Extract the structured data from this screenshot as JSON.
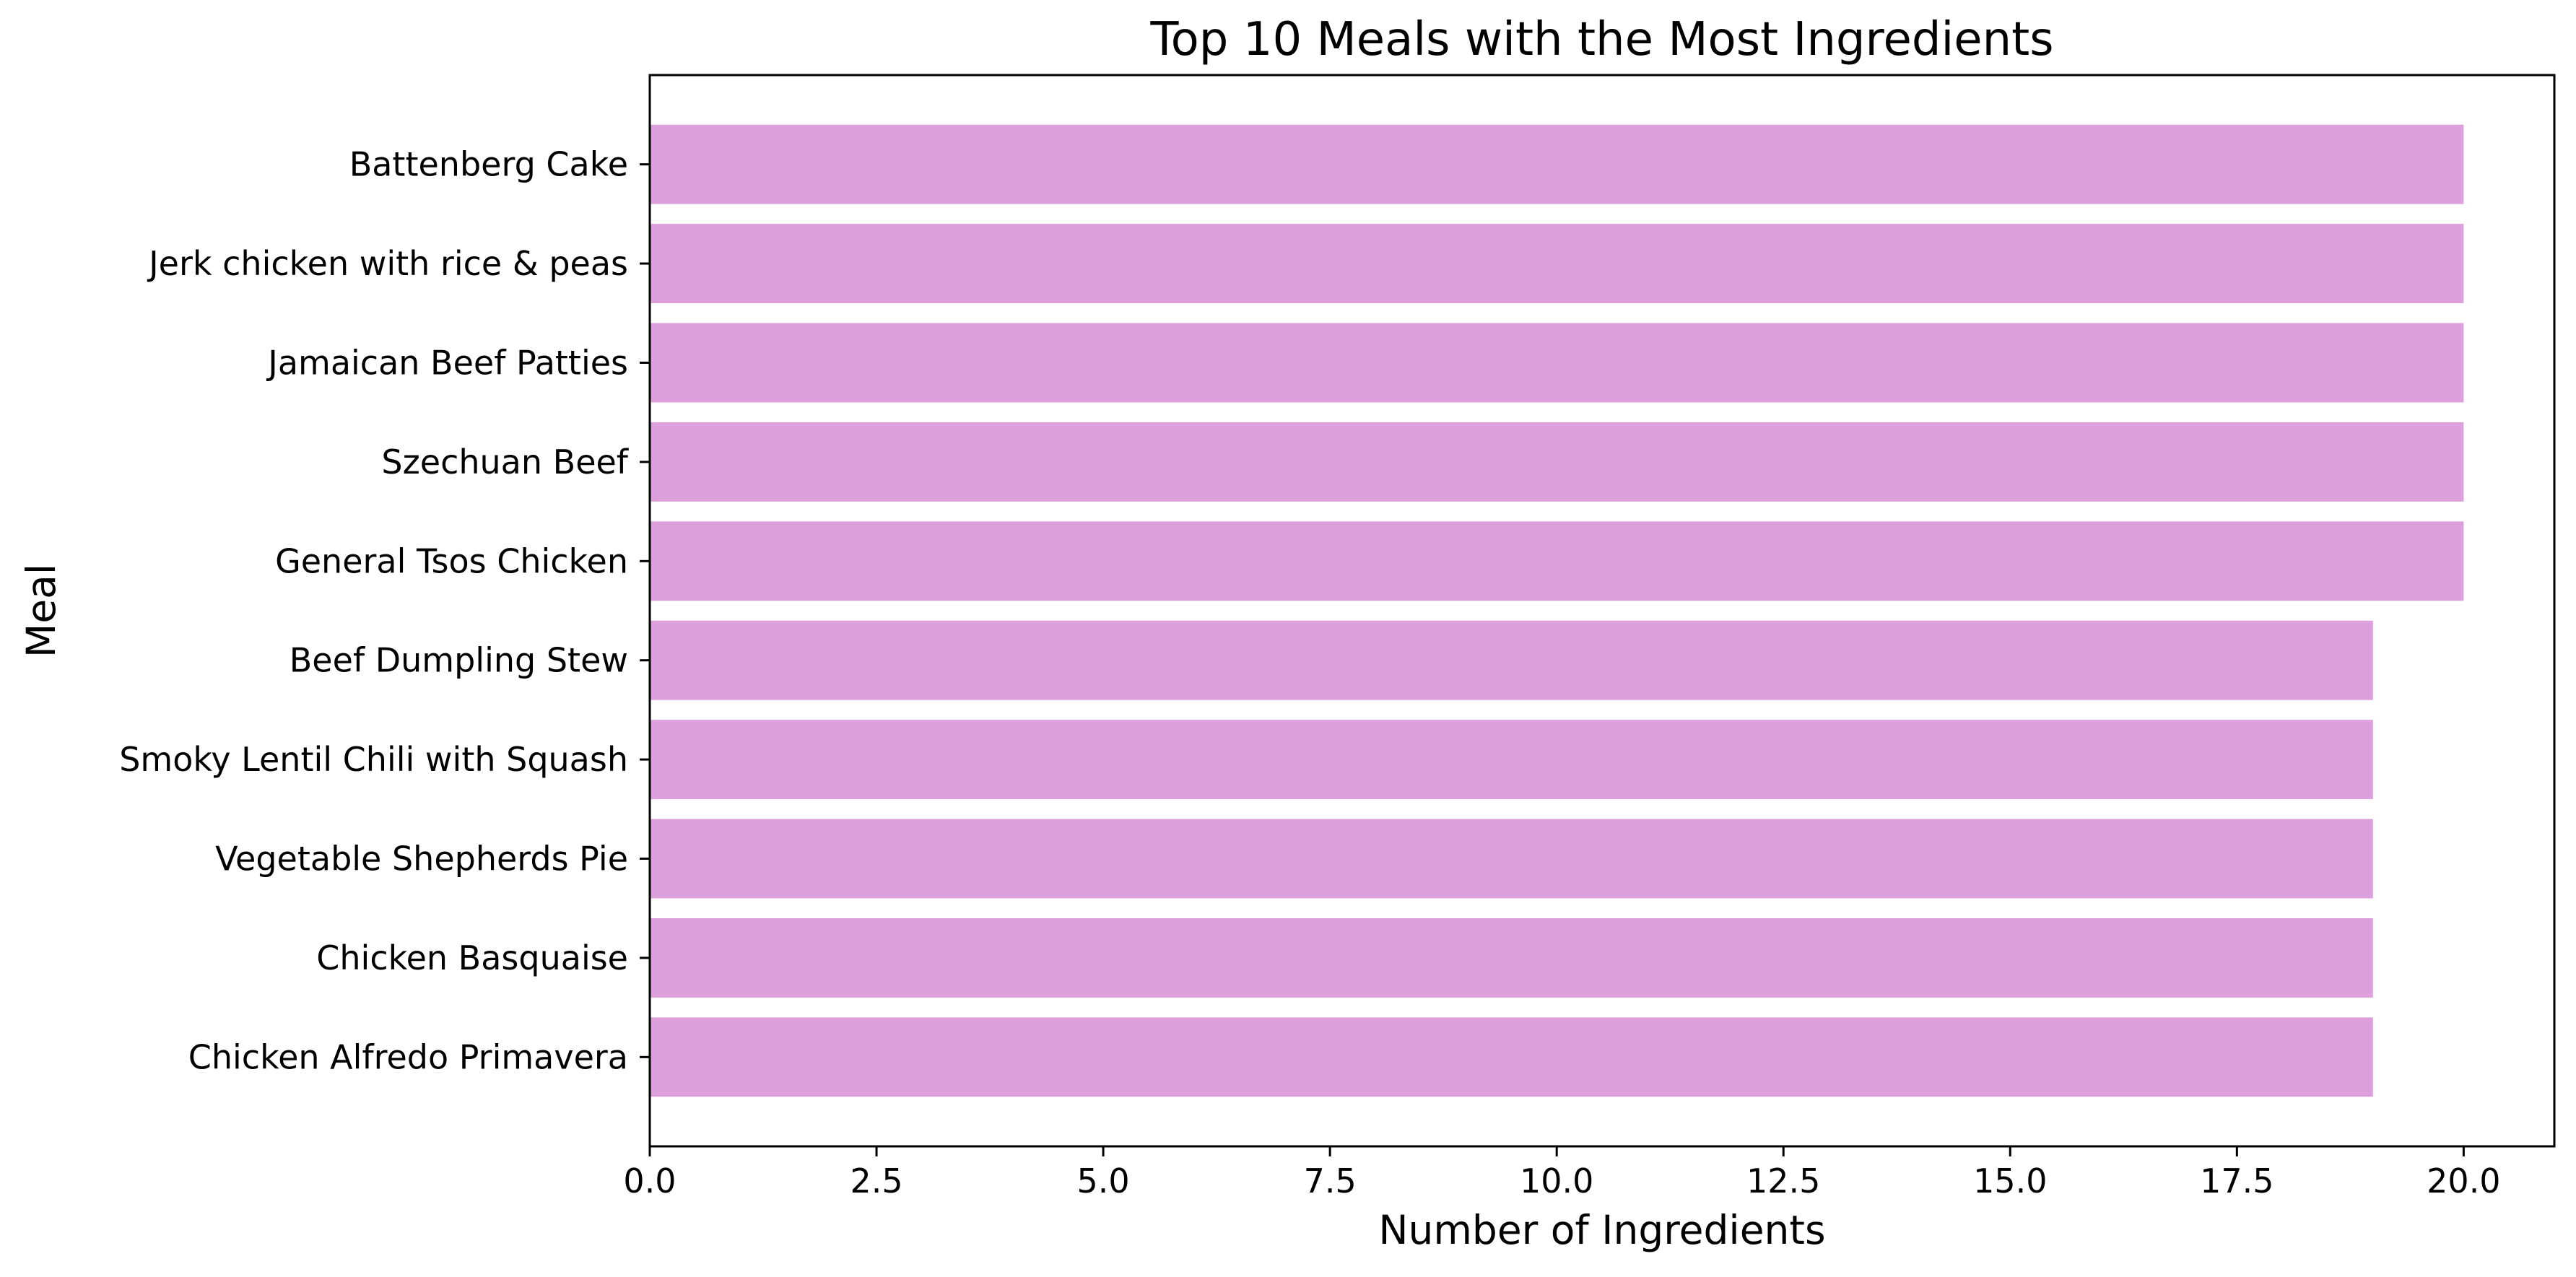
{
  "chart_data": {
    "type": "bar",
    "orientation": "horizontal",
    "title": "Top 10 Meals with the Most Ingredients",
    "xlabel": "Number of Ingredients",
    "ylabel": "Meal",
    "xlim": [
      0,
      21
    ],
    "x_ticks": [
      "0.0",
      "2.5",
      "5.0",
      "7.5",
      "10.0",
      "12.5",
      "15.0",
      "17.5",
      "20.0"
    ],
    "grid": false,
    "bar_color": "#dda0dd",
    "categories": [
      "Battenberg Cake",
      "Jerk chicken with rice & peas",
      "Jamaican Beef Patties",
      "Szechuan Beef",
      "General Tsos Chicken",
      "Beef Dumpling Stew",
      "Smoky Lentil Chili with Squash",
      "Vegetable Shepherds Pie",
      "Chicken Basquaise",
      "Chicken Alfredo Primavera"
    ],
    "values": [
      20,
      20,
      20,
      20,
      20,
      19,
      19,
      19,
      19,
      19
    ]
  }
}
